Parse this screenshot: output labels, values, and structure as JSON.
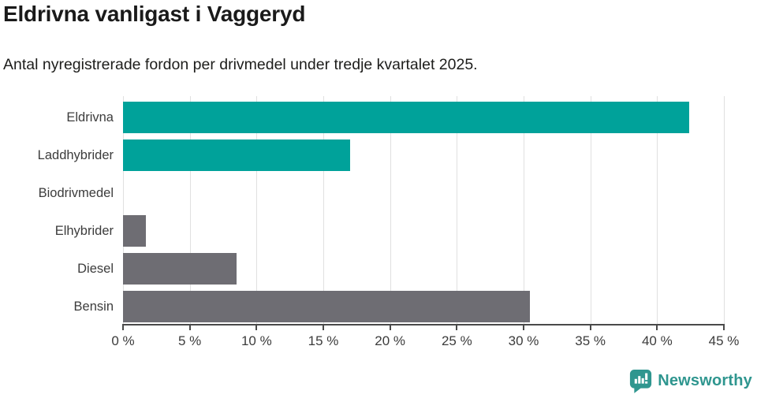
{
  "header": {
    "title": "Eldrivna vanligast i Vaggeryd",
    "subtitle": "Antal nyregistrerade fordon per drivmedel under tredje kvartalet 2025."
  },
  "colors": {
    "teal": "#00a29a",
    "gray": "#6e6d73",
    "grid": "#e0e0e0",
    "axis": "#4a4a4a",
    "logo": "#2f968f"
  },
  "chart_data": {
    "type": "bar",
    "orientation": "horizontal",
    "title": "Eldrivna vanligast i Vaggeryd",
    "subtitle": "Antal nyregistrerade fordon per drivmedel under tredje kvartalet 2025.",
    "categories": [
      "Eldrivna",
      "Laddhybrider",
      "Biodrivmedel",
      "Elhybrider",
      "Diesel",
      "Bensin"
    ],
    "values": [
      42.4,
      17.0,
      0,
      1.7,
      8.5,
      30.5
    ],
    "bar_color_keys": [
      "teal",
      "teal",
      "gray",
      "gray",
      "gray",
      "gray"
    ],
    "xlabel": "",
    "ylabel": "",
    "xlim": [
      0,
      45
    ],
    "x_ticks": [
      0,
      5,
      10,
      15,
      20,
      25,
      30,
      35,
      40,
      45
    ],
    "x_tick_labels": [
      "0 %",
      "5 %",
      "10 %",
      "15 %",
      "20 %",
      "25 %",
      "30 %",
      "35 %",
      "40 %",
      "45 %"
    ],
    "grid": true,
    "legend": "none"
  },
  "footer": {
    "brand": "Newsworthy"
  }
}
